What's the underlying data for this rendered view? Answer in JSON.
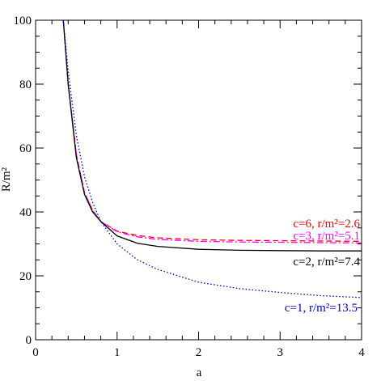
{
  "chart_data": {
    "type": "line",
    "x_label": "a",
    "y_label": "R/m²",
    "xlim": [
      0,
      4
    ],
    "ylim": [
      0,
      100
    ],
    "xticks": [
      0,
      1,
      2,
      3,
      4
    ],
    "yticks": [
      0,
      20,
      40,
      60,
      80,
      100
    ],
    "x_minor_ticks": [
      0.2,
      0.4,
      0.6,
      0.8,
      1.2,
      1.4,
      1.6,
      1.8,
      2.2,
      2.4,
      2.6,
      2.8,
      3.2,
      3.4,
      3.6,
      3.8
    ],
    "y_minor_ticks": [
      5,
      10,
      15,
      25,
      30,
      35,
      45,
      50,
      55,
      65,
      70,
      75,
      85,
      90,
      95
    ],
    "x": [
      0.34,
      0.4,
      0.5,
      0.6,
      0.7,
      0.8,
      1.0,
      1.25,
      1.5,
      2.0,
      2.5,
      3.0,
      3.5,
      4.0
    ],
    "series": [
      {
        "name": "c=6, r/m²=2.6",
        "color": "#ff0000",
        "style": "dashed",
        "values": [
          100,
          80,
          58,
          46,
          40.5,
          37,
          34,
          32.6,
          31.9,
          31.3,
          31.1,
          31.0,
          30.9,
          30.8
        ]
      },
      {
        "name": "c=3, r/m²=5.1",
        "color": "#ff00ff",
        "style": "dashdot",
        "values": [
          100,
          80,
          58,
          46,
          40.5,
          37,
          33.8,
          32.2,
          31.4,
          30.8,
          30.6,
          30.5,
          30.4,
          30.3
        ]
      },
      {
        "name": "c=2, r/m²=7.4",
        "color": "#000000",
        "style": "solid",
        "values": [
          100,
          80,
          57,
          45.5,
          40,
          37,
          32.5,
          30.2,
          29.2,
          28.3,
          28.0,
          27.9,
          27.8,
          27.8
        ]
      },
      {
        "name": "c=1, r/m²=13.5",
        "color": "#0000cc",
        "style": "dotted",
        "values": [
          100,
          84,
          64,
          51,
          43,
          37,
          30,
          25,
          22,
          18,
          16,
          14.8,
          13.8,
          13.2
        ]
      }
    ]
  }
}
